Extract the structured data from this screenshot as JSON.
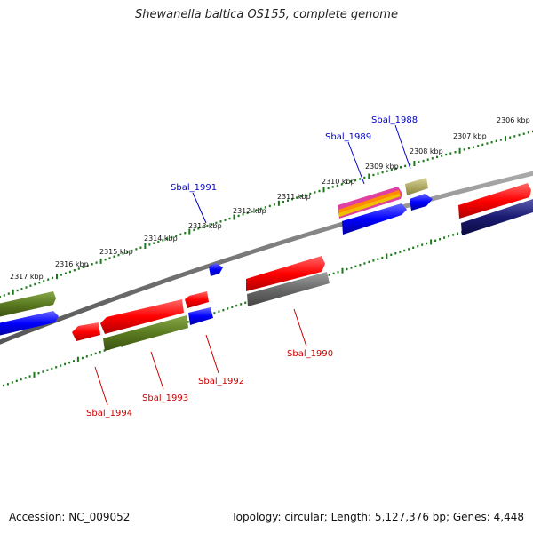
{
  "title": "Shewanella baltica OS155, complete genome",
  "footer": {
    "accession": "Accession: NC_009052",
    "summary": "Topology: circular; Length: 5,127,376 bp; Genes: 4,448"
  },
  "scale_labels": [
    "2306 kbp",
    "2307 kbp",
    "2308 kbp",
    "2309 kbp",
    "2310 kbp",
    "2311 kbp",
    "2312 kbp",
    "2313 kbp",
    "2314 kbp",
    "2315 kbp",
    "2316 kbp",
    "2317 kbp"
  ],
  "gene_labels": {
    "Sbal_1988": "Sbal_1988",
    "Sbal_1989": "Sbal_1989",
    "Sbal_1990": "Sbal_1990",
    "Sbal_1991": "Sbal_1991",
    "Sbal_1992": "Sbal_1992",
    "Sbal_1993": "Sbal_1993",
    "Sbal_1994": "Sbal_1994"
  },
  "colors": {
    "forward_label": "#0000cc",
    "reverse_label": "#cc0000",
    "backbone": "#777777",
    "tick": "#1a7a1a"
  }
}
